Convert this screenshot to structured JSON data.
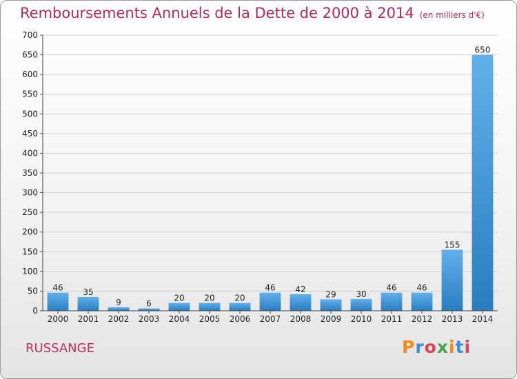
{
  "header": {
    "title": "Remboursements Annuels de la Dette de 2000 à 2014",
    "unit": "(en milliers d'€)"
  },
  "commune": "RUSSANGE",
  "logo_text": "Proxiti",
  "colors": {
    "title": "#b5285b",
    "bar_top": "#62b0ea",
    "bar_bottom": "#2a7dc0",
    "grid": "#cfcfcf"
  },
  "chart_data": {
    "type": "bar",
    "title": "Remboursements Annuels de la Dette de 2000 à 2014",
    "subtitle": "(en milliers d'€)",
    "xlabel": "",
    "ylabel": "",
    "categories": [
      "2000",
      "2001",
      "2002",
      "2003",
      "2004",
      "2005",
      "2006",
      "2007",
      "2008",
      "2009",
      "2010",
      "2011",
      "2012",
      "2013",
      "2014"
    ],
    "values": [
      46,
      35,
      9,
      6,
      20,
      20,
      20,
      46,
      42,
      29,
      30,
      46,
      46,
      155,
      650
    ],
    "ylim": [
      0,
      700
    ],
    "yticks": [
      0,
      50,
      100,
      150,
      200,
      250,
      300,
      350,
      400,
      450,
      500,
      550,
      600,
      650,
      700
    ],
    "grid": true,
    "grid_axis": "y",
    "data_labels": true
  }
}
